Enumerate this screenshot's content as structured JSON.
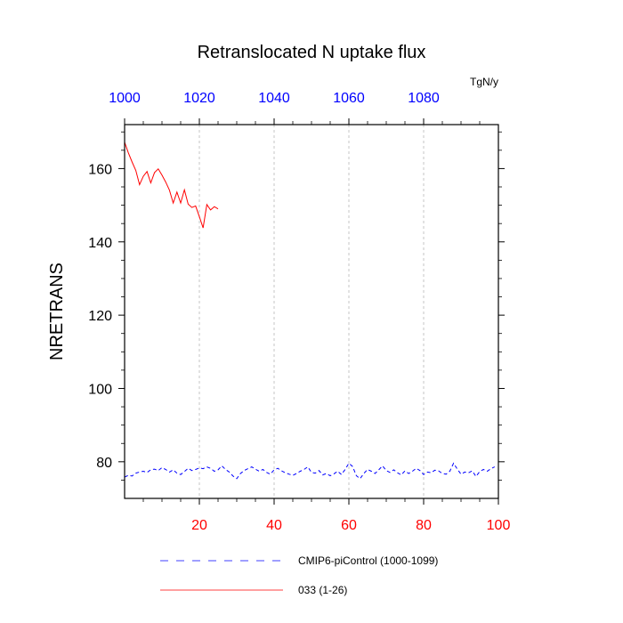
{
  "chart_data": {
    "type": "line",
    "title": "Retranslocated N uptake flux",
    "units": "TgN/y",
    "ylabel": "NRETRANS",
    "xlabel": "",
    "xlim": [
      0,
      100
    ],
    "ylim": [
      70,
      172
    ],
    "x_ticks": [
      20,
      40,
      60,
      80,
      100
    ],
    "x_top_ticks": [
      1000,
      1020,
      1040,
      1060,
      1080
    ],
    "x_top_range": [
      1000,
      1100
    ],
    "y_ticks": [
      80,
      100,
      120,
      140,
      160
    ],
    "grid": "vertical-dashed",
    "legend": "bottom",
    "series": [
      {
        "name": "CMIP6-piControl (1000-1099)",
        "color": "#0000ff",
        "style": "dashed",
        "x": [
          0,
          1,
          2,
          3,
          4,
          5,
          6,
          7,
          8,
          9,
          10,
          11,
          12,
          13,
          14,
          15,
          16,
          17,
          18,
          19,
          20,
          21,
          22,
          23,
          24,
          25,
          26,
          27,
          28,
          29,
          30,
          31,
          32,
          33,
          34,
          35,
          36,
          37,
          38,
          39,
          40,
          41,
          42,
          43,
          44,
          45,
          46,
          47,
          48,
          49,
          50,
          51,
          52,
          53,
          54,
          55,
          56,
          57,
          58,
          59,
          60,
          61,
          62,
          63,
          64,
          65,
          66,
          67,
          68,
          69,
          70,
          71,
          72,
          73,
          74,
          75,
          76,
          77,
          78,
          79,
          80,
          81,
          82,
          83,
          84,
          85,
          86,
          87,
          88,
          89,
          90,
          91,
          92,
          93,
          94,
          95,
          96,
          97,
          98,
          99
        ],
        "values": [
          75.8,
          76.3,
          76.1,
          76.9,
          77.2,
          77.4,
          77.1,
          77.8,
          78.0,
          77.6,
          78.4,
          77.9,
          77.2,
          77.8,
          76.9,
          76.5,
          77.3,
          78.2,
          77.6,
          77.9,
          78.3,
          78.1,
          78.6,
          78.2,
          77.4,
          77.8,
          78.9,
          77.9,
          77.2,
          76.1,
          75.4,
          76.8,
          77.6,
          78.1,
          78.6,
          78.0,
          77.4,
          77.9,
          77.1,
          76.6,
          77.8,
          78.2,
          77.5,
          77.0,
          76.6,
          76.3,
          76.8,
          77.4,
          77.9,
          78.6,
          77.1,
          76.9,
          77.6,
          76.4,
          76.8,
          76.2,
          76.7,
          77.4,
          76.5,
          77.9,
          79.6,
          78.7,
          76.2,
          75.4,
          76.8,
          77.9,
          77.4,
          76.8,
          77.8,
          78.9,
          77.6,
          77.1,
          77.8,
          77.0,
          76.4,
          77.5,
          76.8,
          77.4,
          78.2,
          77.6,
          76.5,
          77.2,
          77.0,
          77.7,
          77.5,
          76.8,
          76.6,
          77.4,
          79.6,
          78.0,
          76.6,
          77.2,
          77.0,
          77.5,
          76.0,
          77.3,
          77.9,
          77.4,
          78.1,
          78.6
        ]
      },
      {
        "name": "033 (1-26)",
        "color": "#ff0000",
        "style": "solid",
        "x": [
          0,
          1,
          2,
          3,
          4,
          5,
          6,
          7,
          8,
          9,
          10,
          11,
          12,
          13,
          14,
          15,
          16,
          17,
          18,
          19,
          20,
          21,
          22,
          23,
          24,
          25
        ],
        "values": [
          167.2,
          164.3,
          161.8,
          159.5,
          155.6,
          157.9,
          159.2,
          156.1,
          158.9,
          159.9,
          158.2,
          156.3,
          154.1,
          150.6,
          153.6,
          150.6,
          154.2,
          150.3,
          149.4,
          149.8,
          146.9,
          143.8,
          150.2,
          148.7,
          149.6,
          149.0
        ]
      }
    ]
  }
}
